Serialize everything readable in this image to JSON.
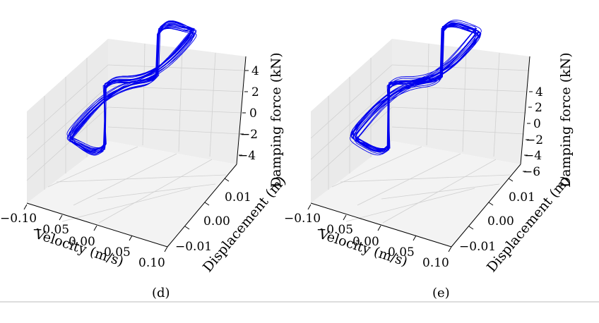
{
  "chart_data": [
    {
      "type": "line3d",
      "caption": "(d)",
      "xlabel": "Velocity (m/s)",
      "ylabel": "Displacement (m)",
      "zlabel": "Damping force (kN)",
      "x_ticks": [
        "−0.10",
        "−0.05",
        "0.00",
        "0.05",
        "0.10"
      ],
      "y_ticks": [
        "−0.01",
        "0.00",
        "0.01"
      ],
      "z_ticks": [
        "−4",
        "−2",
        "0",
        "2",
        "4"
      ],
      "xlim": [
        -0.12,
        0.12
      ],
      "ylim": [
        -0.016,
        0.016
      ],
      "zlim": [
        -5.5,
        5.5
      ],
      "series": [
        {
          "color": "#0000ee",
          "cycles": 14,
          "velocity_amplitude": 0.1,
          "displacement_amplitude": 0.013,
          "force_peak": 5.0,
          "force_plateau": 3.0,
          "force_at_zero_velocity": 2.0
        }
      ]
    },
    {
      "type": "line3d",
      "caption": "(e)",
      "xlabel": "Velocity (m/s)",
      "ylabel": "Displacement (m)",
      "zlabel": "Damping force (kN)",
      "x_ticks": [
        "−0.10",
        "−0.05",
        "0.00",
        "0.05",
        "0.10"
      ],
      "y_ticks": [
        "−0.01",
        "0.00",
        "0.01"
      ],
      "z_ticks": [
        "−6",
        "−4",
        "−2",
        "0",
        "2",
        "4"
      ],
      "xlim": [
        -0.12,
        0.12
      ],
      "ylim": [
        -0.016,
        0.016
      ],
      "zlim": [
        -6.5,
        6.5
      ],
      "series": [
        {
          "color": "#0000ee",
          "cycles": 16,
          "velocity_amplitude": 0.1,
          "displacement_amplitude": 0.013,
          "force_peak": 6.0,
          "force_plateau": 3.5,
          "force_at_zero_velocity": 2.5
        }
      ]
    }
  ]
}
